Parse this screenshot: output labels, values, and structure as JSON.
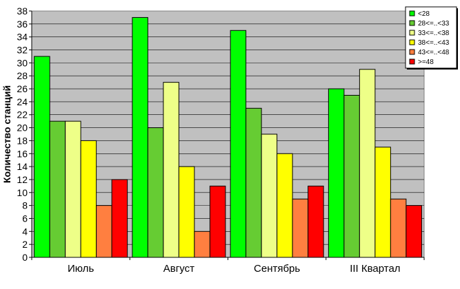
{
  "chart_data": {
    "type": "bar",
    "title": "",
    "xlabel": "",
    "ylabel": "Количество станций",
    "ylim": [
      0,
      38
    ],
    "ytick_step": 2,
    "grid": true,
    "legend_position": "top-right",
    "categories": [
      "Июль",
      "Август",
      "Сентябрь",
      "III Квартал"
    ],
    "series": [
      {
        "name": "<28",
        "color": "#00ff00",
        "values": [
          31,
          37,
          35,
          26
        ]
      },
      {
        "name": "28<=..<33",
        "color": "#66cc33",
        "values": [
          21,
          20,
          23,
          25
        ]
      },
      {
        "name": "33<=..<38",
        "color": "#eeff88",
        "values": [
          21,
          27,
          19,
          29
        ]
      },
      {
        "name": "38<=..<43",
        "color": "#ffff00",
        "values": [
          18,
          14,
          16,
          17
        ]
      },
      {
        "name": "43<=..<48",
        "color": "#ff7f40",
        "values": [
          8,
          4,
          9,
          9
        ]
      },
      {
        "name": ">=48",
        "color": "#ff0000",
        "values": [
          12,
          11,
          11,
          8
        ]
      }
    ],
    "plot_background": "#c0c0c0"
  }
}
